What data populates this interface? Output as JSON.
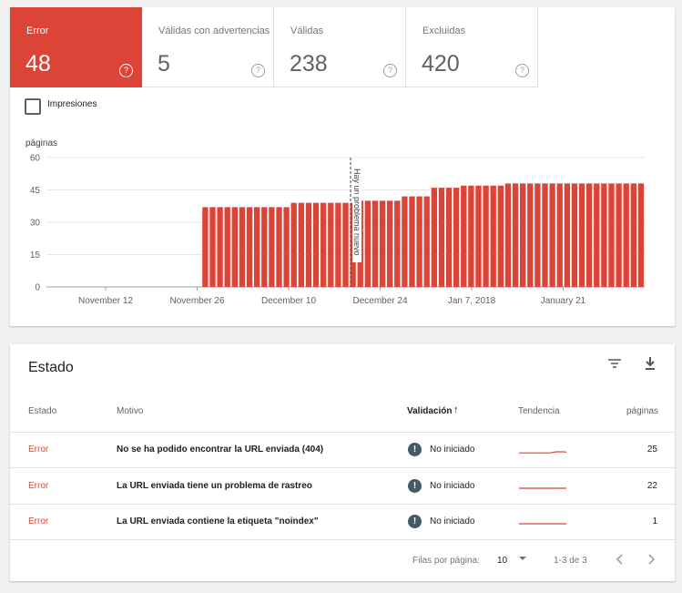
{
  "summary": {
    "tiles": [
      {
        "label": "Error",
        "count": "48",
        "active": true
      },
      {
        "label": "Válidas con advertencias",
        "count": "5",
        "active": false
      },
      {
        "label": "Válidas",
        "count": "238",
        "active": false
      },
      {
        "label": "Excluidas",
        "count": "420",
        "active": false
      }
    ],
    "help_glyph": "?",
    "impressions_label": "Impresiones",
    "impressions_checked": false
  },
  "chart_data": {
    "type": "bar",
    "ylabel": "páginas",
    "yticks": [
      0,
      15,
      30,
      45,
      60
    ],
    "ylim": [
      0,
      60
    ],
    "xtick_labels": [
      "November 12",
      "November 26",
      "December 10",
      "December 24",
      "Jan 7, 2018",
      "January 21"
    ],
    "annotation": "Hay un problema nuevo",
    "color": "#db4437",
    "values": [
      0,
      0,
      0,
      0,
      0,
      0,
      0,
      0,
      0,
      0,
      0,
      0,
      0,
      0,
      0,
      0,
      0,
      0,
      0,
      0,
      0,
      37,
      37,
      37,
      37,
      37,
      37,
      37,
      37,
      37,
      37,
      37,
      37,
      39,
      39,
      39,
      39,
      39,
      39,
      39,
      39,
      39,
      40,
      40,
      40,
      40,
      40,
      40,
      42,
      42,
      42,
      42,
      46,
      46,
      46,
      46,
      47,
      47,
      47,
      47,
      47,
      47,
      48,
      48,
      48,
      48,
      48,
      48,
      48,
      48,
      48,
      48,
      48,
      48,
      48,
      48,
      48,
      48,
      48,
      48,
      48
    ]
  },
  "status": {
    "title": "Estado",
    "filter_icon": "filter-icon",
    "download_icon": "download-icon",
    "columns": {
      "estado": "Estado",
      "motivo": "Motivo",
      "validacion": "Validación",
      "tendencia": "Tendencia",
      "paginas": "páginas"
    },
    "sort_arrow": "↑",
    "rows": [
      {
        "estado": "Error",
        "motivo": "No se ha podido encontrar la URL enviada (404)",
        "validacion": "No iniciado",
        "paginas": "25",
        "trend": [
          22,
          22,
          22,
          22,
          22,
          22,
          22,
          22,
          22,
          22,
          22,
          24,
          25,
          25,
          25,
          24
        ]
      },
      {
        "estado": "Error",
        "motivo": "La URL enviada tiene un problema de rastreo",
        "validacion": "No iniciado",
        "paginas": "22",
        "trend": [
          22,
          22,
          22,
          22,
          22,
          22,
          22,
          22,
          22,
          22,
          22,
          22,
          22,
          22,
          22,
          22
        ]
      },
      {
        "estado": "Error",
        "motivo": "La URL enviada contiene la etiqueta \"noindex\"",
        "validacion": "No iniciado",
        "paginas": "1",
        "trend": [
          1,
          1,
          1,
          1,
          1,
          1,
          1,
          1,
          1,
          1,
          1,
          1,
          1,
          1,
          1,
          1
        ]
      }
    ],
    "warn_glyph": "!",
    "footer": {
      "rows_per_page_label": "Filas por página:",
      "rows_per_page_value": "10",
      "range": "1-3 de 3"
    }
  }
}
